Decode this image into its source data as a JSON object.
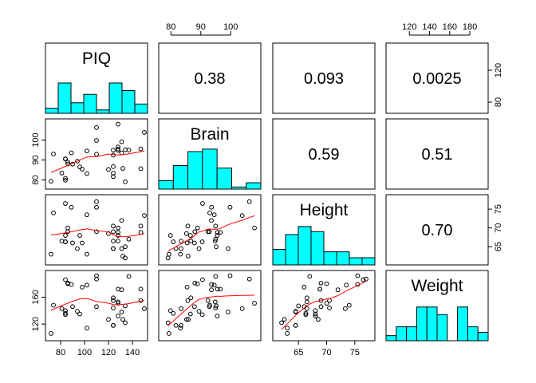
{
  "chart_data": {
    "type": "scatter-matrix",
    "variables": [
      "PIQ",
      "Brain",
      "Height",
      "Weight"
    ],
    "correlations": [
      {
        "row": 0,
        "col": 1,
        "text": "0.38"
      },
      {
        "row": 0,
        "col": 2,
        "text": "0.093"
      },
      {
        "row": 0,
        "col": 3,
        "text": "0.0025"
      },
      {
        "row": 1,
        "col": 2,
        "text": "0.59"
      },
      {
        "row": 1,
        "col": 3,
        "text": "0.51"
      },
      {
        "row": 2,
        "col": 3,
        "text": "0.70"
      }
    ],
    "ranges": {
      "PIQ": [
        70,
        150
      ],
      "Brain": [
        77,
        109
      ],
      "Height": [
        61,
        78
      ],
      "Weight": [
        100,
        195
      ]
    },
    "ticks": {
      "PIQ": [
        80,
        100,
        120,
        140
      ],
      "Brain": [
        80,
        90,
        100
      ],
      "Height": [
        65,
        70,
        75
      ],
      "Weight": [
        120,
        160
      ]
    },
    "tick_labels": {
      "bottom": {
        "col": [
          0,
          2
        ],
        "values": [
          [
            80,
            100,
            120,
            140
          ],
          [
            65,
            70,
            75
          ]
        ]
      },
      "top": {
        "col": [
          1,
          3
        ],
        "values": [
          [
            80,
            90,
            100
          ],
          [
            120,
            140,
            160,
            180
          ]
        ]
      },
      "left": {
        "row": [
          1,
          3
        ],
        "values": [
          [
            80,
            90,
            100
          ],
          [
            120,
            160
          ]
        ]
      },
      "right": {
        "row": [
          0,
          2
        ],
        "values": [
          [
            80,
            120
          ],
          [
            65,
            70,
            75
          ]
        ]
      }
    },
    "histograms": {
      "PIQ": [
        0.12,
        0.72,
        0.25,
        0.45,
        0.08,
        0.72,
        0.54,
        0.22
      ],
      "Brain": [
        0.2,
        0.56,
        0.89,
        0.95,
        0.5,
        0.05,
        0.15
      ],
      "Height": [
        0.37,
        0.72,
        0.91,
        0.79,
        0.31,
        0.31,
        0.17,
        0.17
      ],
      "Weight": [
        0.12,
        0.33,
        0.33,
        0.8,
        0.8,
        0.62,
        0.0,
        0.8,
        0.33,
        0.2
      ]
    },
    "points": {
      "PIQ": [
        124,
        150,
        128,
        134,
        110,
        131,
        98,
        84,
        147,
        124,
        128,
        124,
        147,
        90,
        96,
        120,
        102,
        84,
        86,
        84,
        134,
        128,
        102,
        131,
        84,
        110,
        72,
        124,
        132,
        137,
        110,
        86,
        81,
        128,
        124,
        94,
        74,
        89
      ],
      "Brain": [
        81.69,
        103.84,
        96.54,
        95.15,
        92.88,
        99.13,
        85.43,
        90.49,
        95.55,
        83.39,
        107.95,
        92.41,
        85.65,
        87.89,
        86.54,
        85.22,
        94.51,
        80.8,
        88.91,
        90.59,
        79.06,
        95.5,
        83.18,
        93.55,
        79.86,
        106.25,
        79.35,
        86.67,
        85.78,
        94.96,
        99.79,
        88.0,
        83.43,
        94.81,
        94.94,
        89.4,
        93.0,
        93.59
      ],
      "Height": [
        64.5,
        73.3,
        68.8,
        65.0,
        69.0,
        64.5,
        66.0,
        66.3,
        68.8,
        64.5,
        70.0,
        69.0,
        70.5,
        66.0,
        68.0,
        68.5,
        73.5,
        66.3,
        70.0,
        76.5,
        62.0,
        68.0,
        63.0,
        72.0,
        68.0,
        77.0,
        63.0,
        66.5,
        62.5,
        67.0,
        75.5,
        69.0,
        66.5,
        66.5,
        70.5,
        64.5,
        74.0,
        75.5
      ],
      "Weight": [
        118,
        143,
        172,
        147,
        146,
        138,
        175,
        134,
        172,
        118,
        151,
        155,
        155,
        146,
        135,
        127,
        178,
        136,
        180,
        186,
        122,
        132,
        114,
        171,
        140,
        187,
        106,
        159,
        127,
        191,
        192,
        181,
        143,
        153,
        144,
        139,
        148,
        179
      ]
    },
    "smoother_color": "#ff0000",
    "histogram_color": "#00ffff",
    "point_style": "open-circle"
  }
}
